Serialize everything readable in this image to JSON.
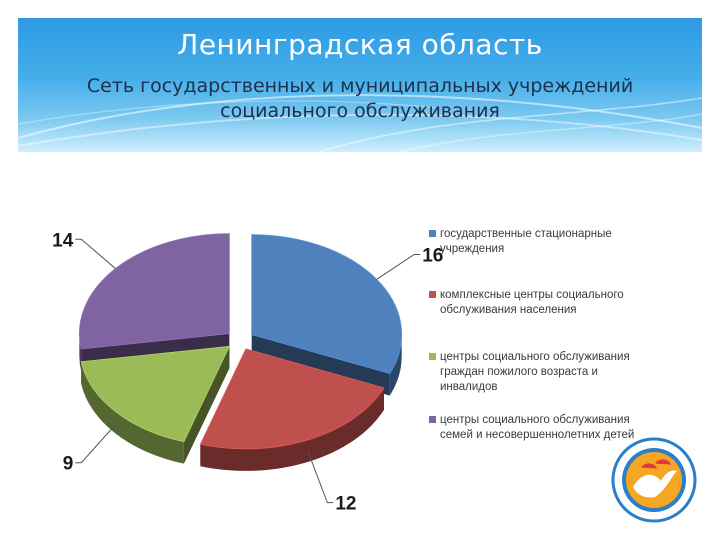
{
  "header": {
    "title": "Ленинградская область",
    "subtitle": "Сеть государственных и муниципальных учреждений социального обслуживания"
  },
  "colors": {
    "accent": "#2e9ae4",
    "title_text": "#ffffff"
  },
  "chart_data": {
    "type": "pie",
    "style": "3d-exploded",
    "title": "",
    "legend_position": "right",
    "categories": [
      "государственные стационарные учреждения",
      "комплексные центры социального обслуживания населения",
      "центры социального обслуживания граждан пожилого возраста и инвалидов",
      "центры социального обслуживания семей и несовершеннолетних детей"
    ],
    "values": [
      16,
      12,
      9,
      14
    ],
    "colors": [
      "#4f81bd",
      "#c0504d",
      "#9bbb59",
      "#8064a2"
    ],
    "data_labels": [
      "16",
      "12",
      "9",
      "14"
    ]
  }
}
